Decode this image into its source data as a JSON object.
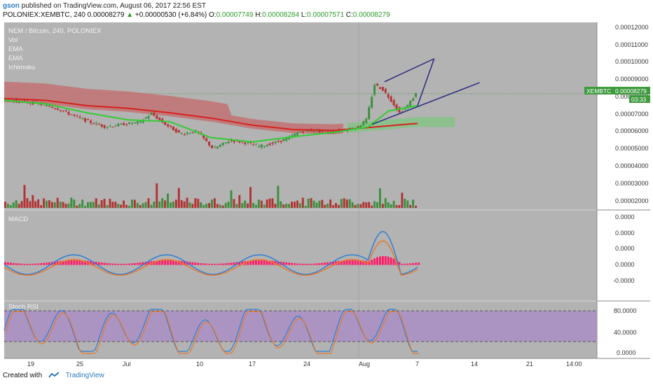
{
  "header": {
    "user": "gson",
    "published_text": "published on TradingView.com, August 06, 2017 22:56 EST",
    "symbol": "POLONIEX:XEMBTC, 240",
    "last": "0.00008279",
    "change": "+0.00000530 (+6.84%)",
    "o_label": "O:",
    "o": "0.00007749",
    "h_label": "H:",
    "h": "0.00008284",
    "l_label": "L:",
    "l": "0.00007571",
    "c_label": "C:",
    "c": "0.00008279"
  },
  "legend": {
    "title": "NEM / Bitcoin, 240, POLONIEX",
    "items": [
      "Vol",
      "EMA",
      "EMA",
      "Ichimoku"
    ]
  },
  "price_axis": [
    "0.00012000",
    "0.00011000",
    "0.00010000",
    "0.00009000",
    "0.00008000",
    "0.00007000",
    "0.00006000",
    "0.00005000",
    "0.00004000",
    "0.00003000",
    "0.00002000"
  ],
  "price_tag": {
    "symbol": "XEMBTC",
    "value": "0.00008279",
    "countdown": "03:33"
  },
  "macd": {
    "title": "MACD",
    "axis": [
      "0.0000",
      "0.0000",
      "0.0000",
      "0.0000",
      "-0.0000"
    ]
  },
  "stoch": {
    "title": "Stoch RSI",
    "axis": [
      "80.0000",
      "40.0000",
      "0.0000"
    ]
  },
  "time_axis": [
    "19",
    "25",
    "Jul",
    "10",
    "17",
    "24",
    "Aug",
    "7",
    "14",
    "21",
    "14:00"
  ],
  "footer": {
    "created_with": "Created with",
    "brand": "TradingView"
  },
  "colors": {
    "background": "#b3b3b3",
    "up_candle": "#3d8f3d",
    "down_candle": "#b33232",
    "ema_fast": "#33cc33",
    "ema_slow": "#d62020",
    "cloud_bear": "#c46a6a",
    "cloud_bull": "#7fc47f",
    "macd_line": "#2f7fd4",
    "signal_line": "#e8782a",
    "histogram": "#ff1a66",
    "stoch_k": "#2f7fd4",
    "stoch_d": "#e8782a",
    "stoch_band": "#a98cc4",
    "trend_lines": "#2a2a80"
  },
  "chart_data": {
    "type": "candlestick",
    "title": "NEM / Bitcoin, 240, POLONIEX",
    "ylim": [
      1.75e-05,
      0.000123
    ],
    "last_price": 8.279e-05,
    "price_path": [
      [
        0,
        7.95e-05
      ],
      [
        0.05,
        7.8e-05
      ],
      [
        0.09,
        7.7e-05
      ],
      [
        0.13,
        7.45e-05
      ],
      [
        0.17,
        7.05e-05
      ],
      [
        0.21,
        6.68e-05
      ],
      [
        0.25,
        6.4e-05
      ],
      [
        0.29,
        6.55e-05
      ],
      [
        0.33,
        6.65e-05
      ],
      [
        0.36,
        7.15e-05
      ],
      [
        0.39,
        6.6e-05
      ],
      [
        0.43,
        6e-05
      ],
      [
        0.47,
        6.15e-05
      ],
      [
        0.51,
        5.15e-05
      ],
      [
        0.55,
        5.65e-05
      ],
      [
        0.59,
        5.5e-05
      ],
      [
        0.62,
        5.3e-05
      ],
      [
        0.65,
        5.45e-05
      ],
      [
        0.69,
        5.75e-05
      ],
      [
        0.72,
        6.15e-05
      ],
      [
        0.75,
        6.2e-05
      ],
      [
        0.79,
        6.1e-05
      ],
      [
        0.83,
        6.25e-05
      ],
      [
        0.86,
        6.4e-05
      ],
      [
        0.88,
        6.8e-05
      ],
      [
        0.9,
        8.8e-05
      ],
      [
        0.92,
        8.5e-05
      ],
      [
        0.94,
        7.9e-05
      ],
      [
        0.96,
        7.2e-05
      ],
      [
        0.98,
        7.6e-05
      ],
      [
        1.0,
        8.28e-05
      ]
    ],
    "ema_fast": [
      [
        0,
        7.9e-05
      ],
      [
        0.1,
        7.7e-05
      ],
      [
        0.2,
        7.2e-05
      ],
      [
        0.3,
        6.8e-05
      ],
      [
        0.4,
        6.7e-05
      ],
      [
        0.5,
        5.8e-05
      ],
      [
        0.6,
        5.55e-05
      ],
      [
        0.7,
        5.85e-05
      ],
      [
        0.8,
        6.1e-05
      ],
      [
        0.88,
        6.4e-05
      ],
      [
        0.93,
        7.3e-05
      ],
      [
        1.0,
        7.6e-05
      ]
    ],
    "ema_slow": [
      [
        0,
        8e-05
      ],
      [
        0.1,
        7.9e-05
      ],
      [
        0.2,
        7.6e-05
      ],
      [
        0.3,
        7.45e-05
      ],
      [
        0.4,
        7.2e-05
      ],
      [
        0.5,
        6.9e-05
      ],
      [
        0.6,
        6.5e-05
      ],
      [
        0.7,
        6.25e-05
      ],
      [
        0.8,
        6.2e-05
      ],
      [
        0.9,
        6.4e-05
      ],
      [
        1.0,
        6.6e-05
      ]
    ],
    "trend_lines": [
      {
        "from": [
          0.89,
          6.55e-05
        ],
        "to": [
          1.15,
          8.9e-05
        ]
      },
      {
        "from": [
          0.92,
          8.95e-05
        ],
        "to": [
          1.04,
          0.0001025
        ]
      },
      {
        "from": [
          1.0,
          7.6e-05
        ],
        "to": [
          1.04,
          0.0001025
        ]
      }
    ]
  }
}
